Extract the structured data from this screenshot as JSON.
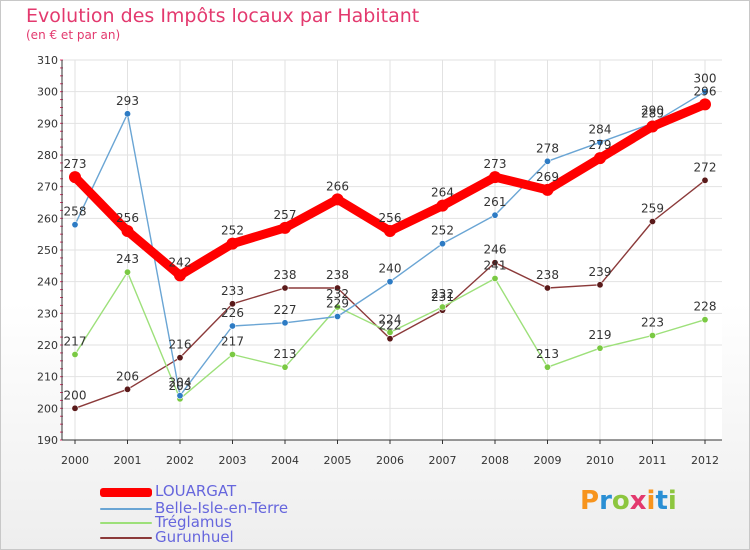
{
  "header": {
    "title": "Evolution des Impôts locaux par Habitant",
    "subtitle": "(en € et par an)"
  },
  "logo": {
    "text": "Proxiti",
    "colors": [
      "#f7941d",
      "#2a8fd4",
      "#8dc63f",
      "#e3396e",
      "#f7941d",
      "#2a8fd4",
      "#8dc63f"
    ]
  },
  "chart_data": {
    "type": "line",
    "title": "Evolution des Impôts locaux par Habitant",
    "subtitle": "(en € et par an)",
    "xlabel": "",
    "ylabel": "",
    "ylim": [
      190,
      310
    ],
    "yticks": [
      190,
      200,
      210,
      220,
      230,
      240,
      250,
      260,
      270,
      280,
      290,
      300,
      310
    ],
    "categories": [
      "2000",
      "2001",
      "2002",
      "2003",
      "2004",
      "2005",
      "2006",
      "2007",
      "2008",
      "2009",
      "2010",
      "2011",
      "2012"
    ],
    "grid": true,
    "legend_position": "bottom-left",
    "series": [
      {
        "name": "LOUARGAT",
        "color": "#ff0000",
        "marker_color": "#ff0000",
        "values": [
          273,
          256,
          242,
          252,
          257,
          266,
          256,
          264,
          273,
          269,
          279,
          289,
          296
        ]
      },
      {
        "name": "Belle-Isle-en-Terre",
        "color": "#6aa5d4",
        "marker_color": "#2d7bc4",
        "values": [
          258,
          293,
          204,
          226,
          227,
          229,
          240,
          252,
          261,
          278,
          284,
          290,
          300
        ]
      },
      {
        "name": "Tréglamus",
        "color": "#9de07a",
        "marker_color": "#7ac943",
        "values": [
          217,
          243,
          203,
          217,
          213,
          232,
          224,
          232,
          241,
          213,
          219,
          223,
          228
        ]
      },
      {
        "name": "Gurunhuel",
        "color": "#8b3a3a",
        "marker_color": "#5a1a1a",
        "values": [
          200,
          206,
          216,
          233,
          238,
          238,
          222,
          231,
          246,
          238,
          239,
          259,
          272
        ]
      }
    ]
  }
}
